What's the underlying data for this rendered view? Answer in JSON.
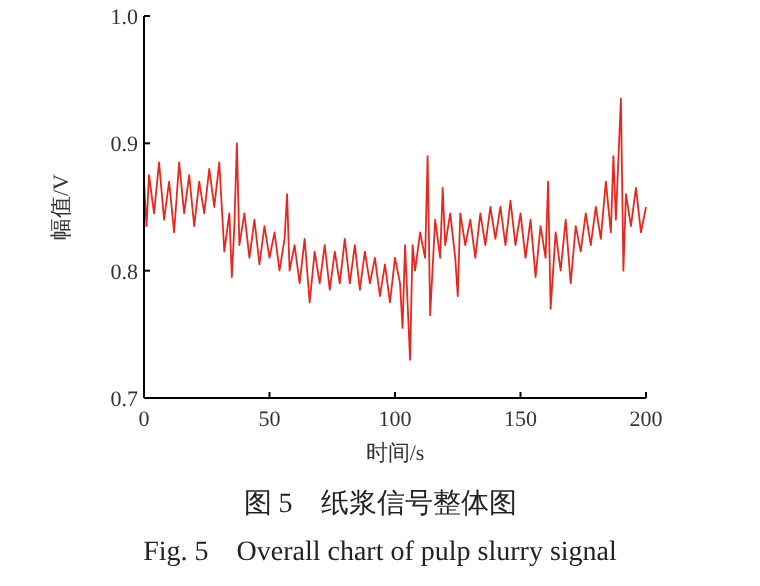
{
  "chart_data": {
    "type": "line",
    "xlabel": "时间/s",
    "ylabel": "幅值/V",
    "annotations": [
      "图 5　纸浆信号整体图",
      "Fig. 5　Overall chart of pulp slurry signal"
    ],
    "xlim": [
      0,
      200
    ],
    "ylim": [
      0.7,
      1.0
    ],
    "xticks": [
      0,
      50,
      100,
      150,
      200
    ],
    "yticks": [
      0.7,
      0.8,
      0.9,
      {
        "value": 1.0,
        "label": "1.0"
      }
    ],
    "x": [
      0,
      1,
      2,
      4,
      6,
      8,
      10,
      12,
      14,
      16,
      18,
      20,
      22,
      24,
      26,
      28,
      30,
      32,
      34,
      35,
      36,
      37,
      38,
      40,
      42,
      44,
      46,
      48,
      50,
      52,
      54,
      56,
      57,
      58,
      60,
      62,
      64,
      66,
      68,
      70,
      72,
      74,
      76,
      78,
      80,
      82,
      84,
      86,
      88,
      90,
      92,
      94,
      96,
      98,
      100,
      102,
      103,
      104,
      106,
      107,
      108,
      110,
      112,
      113,
      114,
      116,
      118,
      119,
      120,
      122,
      124,
      125,
      126,
      128,
      130,
      132,
      134,
      136,
      138,
      140,
      142,
      144,
      146,
      148,
      150,
      152,
      154,
      156,
      158,
      160,
      161,
      162,
      164,
      166,
      168,
      170,
      172,
      174,
      176,
      178,
      180,
      182,
      184,
      186,
      187,
      188,
      190,
      191,
      192,
      194,
      196,
      198,
      200
    ],
    "series": [
      {
        "color": "#e8281e",
        "values": [
          0.87,
          0.835,
          0.875,
          0.845,
          0.885,
          0.84,
          0.87,
          0.83,
          0.885,
          0.845,
          0.875,
          0.835,
          0.87,
          0.845,
          0.88,
          0.85,
          0.885,
          0.815,
          0.845,
          0.795,
          0.835,
          0.9,
          0.82,
          0.845,
          0.81,
          0.84,
          0.805,
          0.835,
          0.81,
          0.83,
          0.8,
          0.825,
          0.86,
          0.8,
          0.82,
          0.79,
          0.825,
          0.775,
          0.815,
          0.79,
          0.82,
          0.785,
          0.815,
          0.79,
          0.825,
          0.79,
          0.82,
          0.785,
          0.815,
          0.79,
          0.81,
          0.78,
          0.805,
          0.775,
          0.81,
          0.79,
          0.755,
          0.82,
          0.73,
          0.82,
          0.8,
          0.83,
          0.81,
          0.89,
          0.765,
          0.84,
          0.81,
          0.865,
          0.82,
          0.845,
          0.81,
          0.78,
          0.845,
          0.82,
          0.84,
          0.81,
          0.845,
          0.82,
          0.85,
          0.825,
          0.85,
          0.82,
          0.855,
          0.82,
          0.845,
          0.81,
          0.84,
          0.795,
          0.835,
          0.81,
          0.87,
          0.77,
          0.83,
          0.8,
          0.84,
          0.79,
          0.835,
          0.815,
          0.845,
          0.82,
          0.85,
          0.825,
          0.87,
          0.83,
          0.89,
          0.84,
          0.935,
          0.8,
          0.86,
          0.835,
          0.865,
          0.83,
          0.85
        ]
      }
    ]
  }
}
